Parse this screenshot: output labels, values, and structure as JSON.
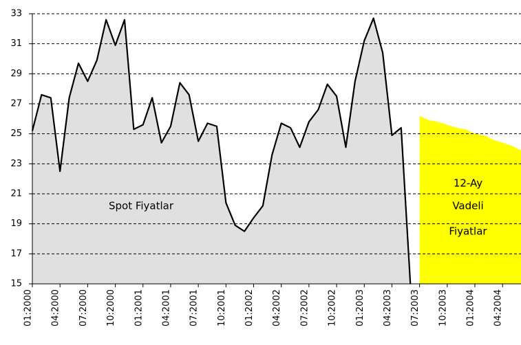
{
  "chart_data": {
    "type": "area",
    "categories": [
      "01:2000",
      null,
      null,
      "04:2000",
      null,
      null,
      "07:2000",
      null,
      null,
      "10:2000",
      null,
      null,
      "01:2001",
      null,
      null,
      "04:2001",
      null,
      null,
      "07:2001",
      null,
      null,
      "10:2001",
      null,
      null,
      "01:2002",
      null,
      null,
      "04:2002",
      null,
      null,
      "07:2002",
      null,
      null,
      "10:2002",
      null,
      null,
      "01:2003",
      null,
      null,
      "04:2003",
      null,
      null,
      "07:2003",
      null,
      null,
      "10:2003",
      null,
      null,
      "01:2004",
      null,
      null,
      "04:2004",
      null,
      null
    ],
    "series": [
      {
        "name": "Spot Fiyatlar",
        "color": "#e0e0e0",
        "line_color": "#000000",
        "values": [
          25.2,
          27.6,
          27.4,
          22.5,
          27.4,
          29.7,
          28.5,
          29.9,
          32.6,
          30.9,
          32.6,
          25.3,
          25.6,
          27.4,
          24.4,
          25.5,
          28.4,
          27.6,
          24.5,
          25.7,
          25.5,
          20.4,
          18.9,
          18.5,
          19.4,
          20.2,
          23.6,
          25.7,
          25.4,
          24.1,
          25.8,
          26.6,
          28.3,
          27.5,
          24.1,
          28.5,
          31.2,
          32.7,
          30.4,
          24.9,
          25.4,
          15,
          null,
          null,
          null,
          null,
          null,
          null,
          null,
          null,
          null,
          null,
          null,
          null
        ]
      },
      {
        "name": "12-Ay Vadeli Fiyatlar",
        "color": "#ffff00",
        "values": [
          null,
          null,
          null,
          null,
          null,
          null,
          null,
          null,
          null,
          null,
          null,
          null,
          null,
          null,
          null,
          null,
          null,
          null,
          null,
          null,
          null,
          null,
          null,
          null,
          null,
          null,
          null,
          null,
          null,
          null,
          null,
          null,
          null,
          null,
          null,
          null,
          null,
          null,
          null,
          null,
          null,
          null,
          26.2,
          25.9,
          25.8,
          25.6,
          25.4,
          25.3,
          25.0,
          24.9,
          24.6,
          24.4,
          24.2,
          23.9
        ]
      }
    ],
    "annotations": [
      "Spot Fiyatlar",
      "12-Ay",
      "Vadeli",
      "Fiyatlar"
    ],
    "ylim": [
      15,
      33
    ],
    "yticks": [
      15,
      17,
      19,
      21,
      23,
      25,
      27,
      29,
      31,
      33
    ],
    "grid": true
  }
}
